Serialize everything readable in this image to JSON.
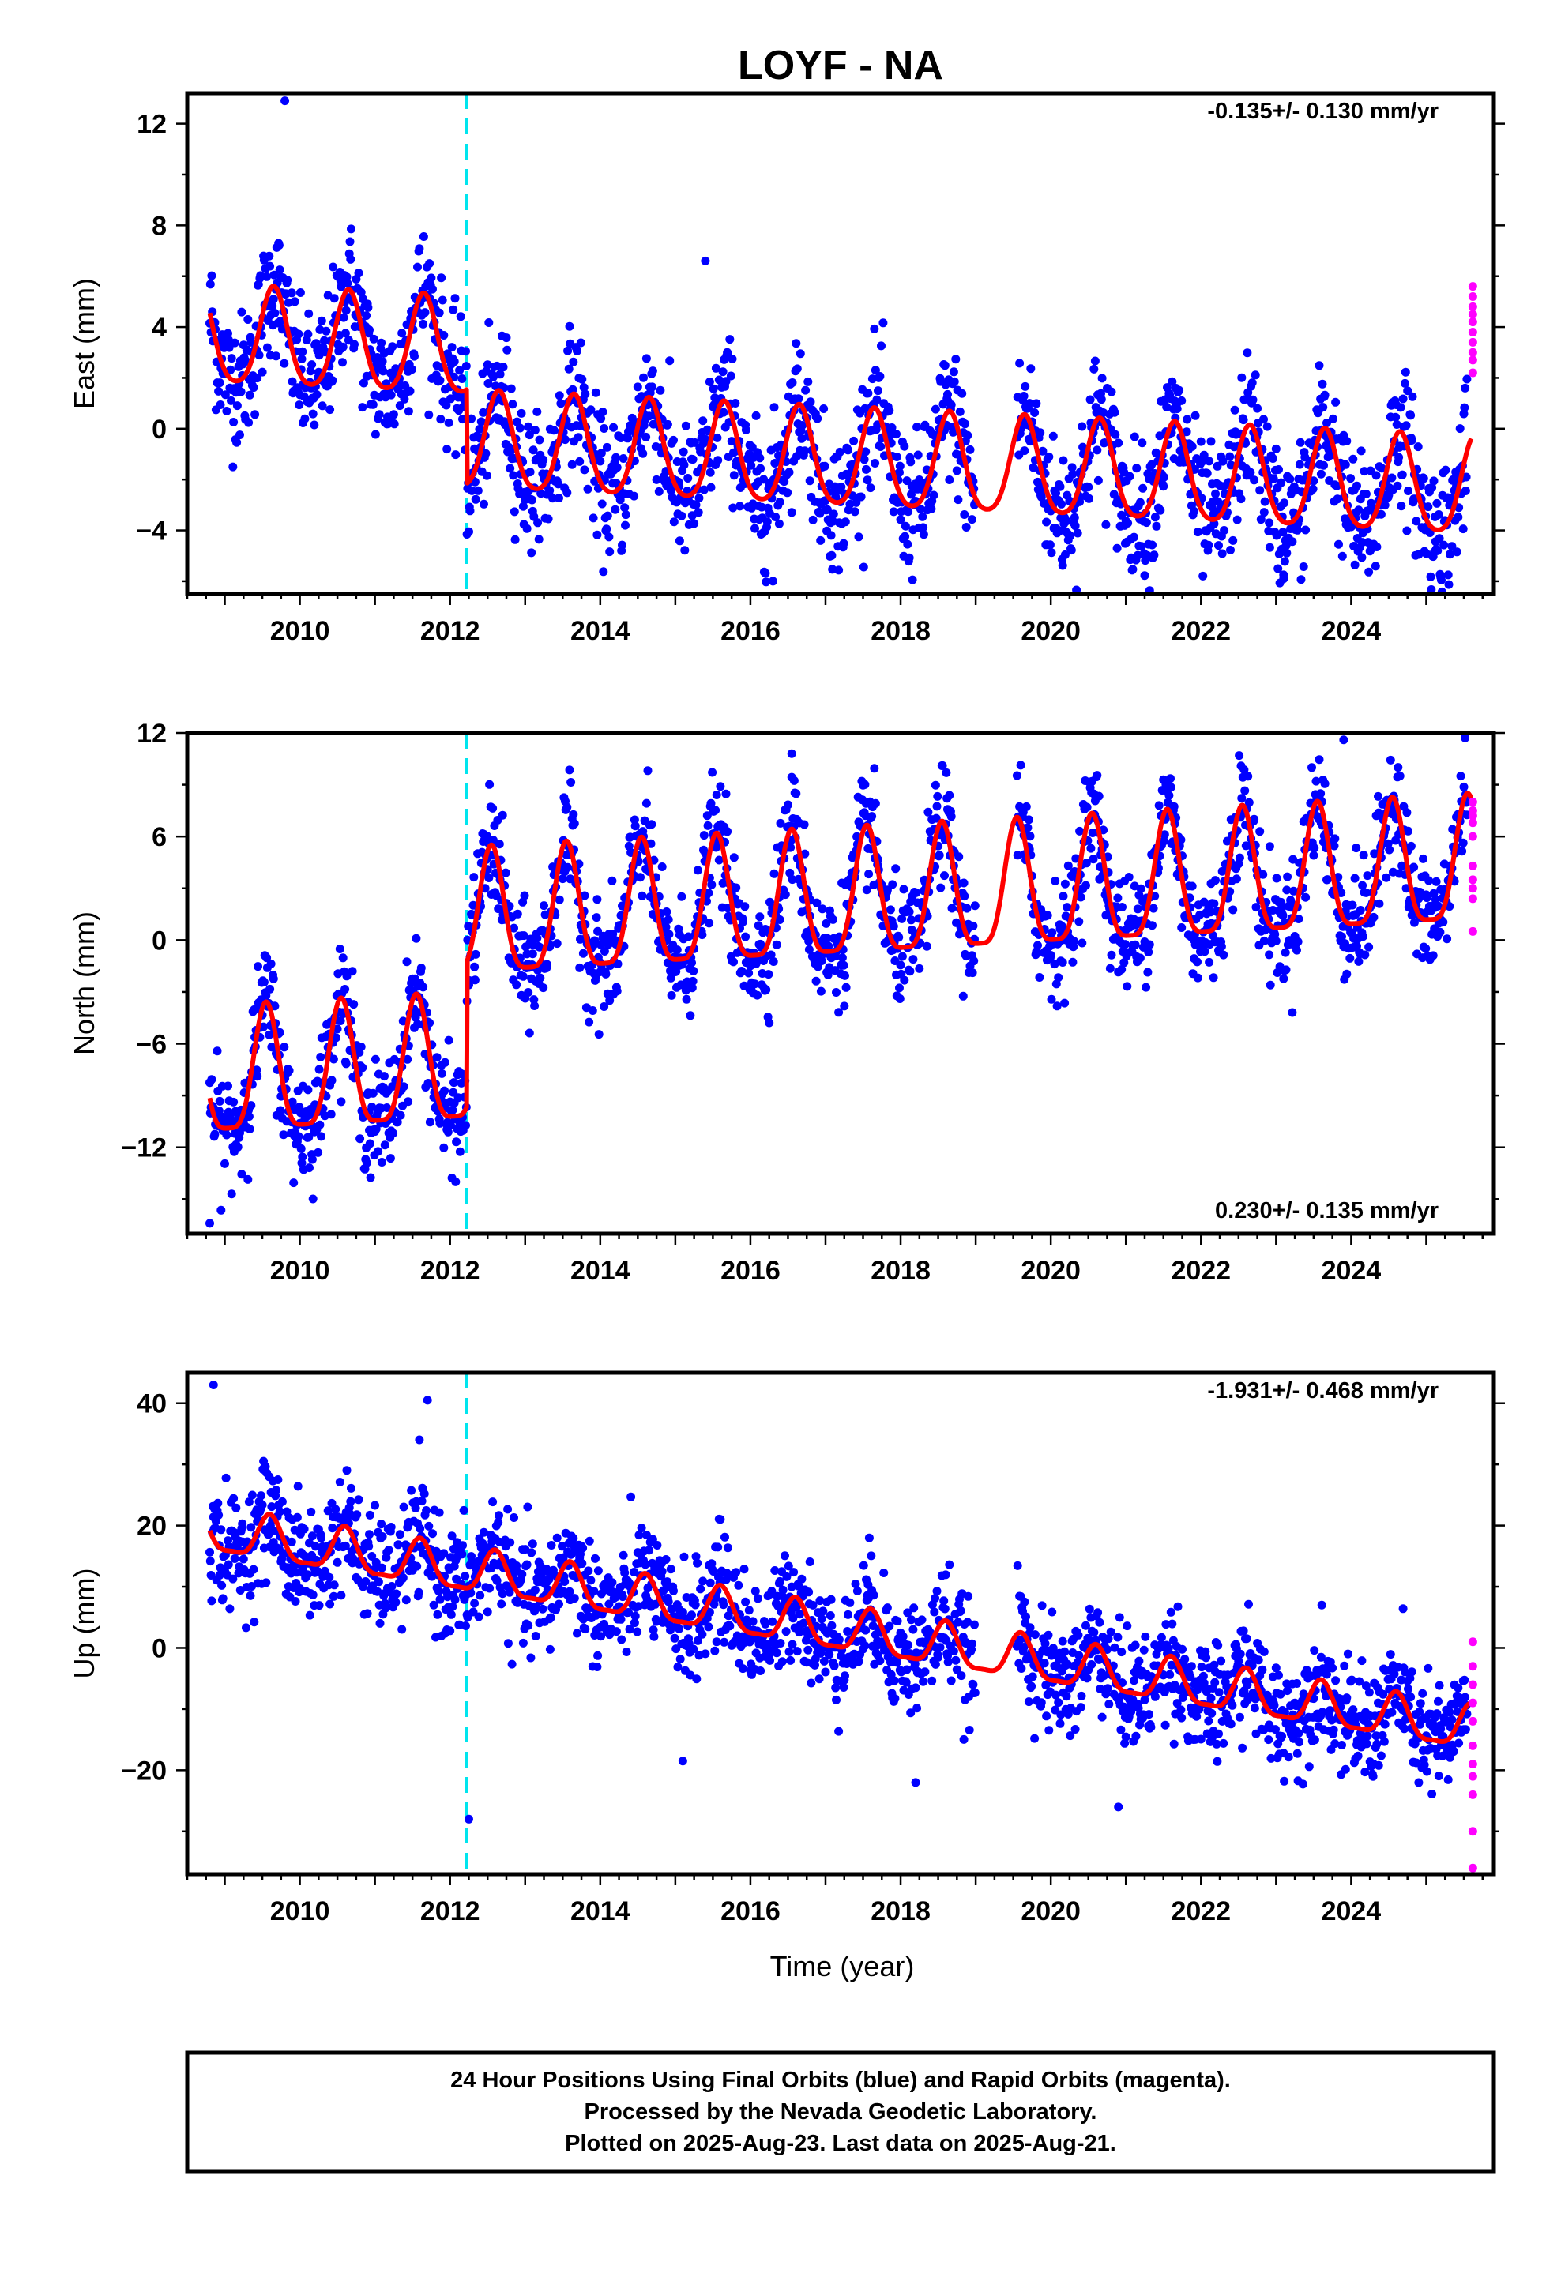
{
  "title": "LOYF - NA",
  "xlabel": "Time (year)",
  "colors": {
    "final": "#0000ff",
    "rapid": "#ff00ff",
    "model": "#ff0000",
    "event": "#00e5ee"
  },
  "footer": [
    "24 Hour Positions Using Final Orbits (blue) and Rapid Orbits (magenta).",
    "Processed by the Nevada Geodetic Laboratory.",
    "Plotted on 2025-Aug-23. Last data on 2025-Aug-21."
  ],
  "chart_data": [
    {
      "type": "scatter",
      "ylabel": "East (mm)",
      "rate_text": "-0.135+/- 0.130 mm/yr",
      "xlim": [
        2008.5,
        2025.9
      ],
      "ylim": [
        -6.5,
        13.2
      ],
      "yticks": [
        -4,
        0,
        4,
        8,
        12
      ],
      "xticks": [
        2010,
        2012,
        2014,
        2016,
        2018,
        2020,
        2022,
        2024
      ],
      "event_x": 2012.22,
      "data_gap": [
        2019.0,
        2019.55
      ],
      "model": {
        "pre": 3.5,
        "post": -0.2,
        "rate": -0.135,
        "annual_amp": 1.9,
        "annual_phase": 2009.65,
        "semi_amp": 0.3
      },
      "scatter_sigma": 1.3,
      "rapid_points": [
        5.6,
        5.2,
        4.8,
        4.5,
        4.2,
        3.8,
        3.4,
        3.0,
        2.7,
        2.2
      ],
      "outliers": [
        [
          2009.8,
          12.9
        ],
        [
          2015.4,
          6.6
        ],
        [
          2016.3,
          -6.0
        ],
        [
          2023.1,
          -5.9
        ]
      ]
    },
    {
      "type": "scatter",
      "ylabel": "North (mm)",
      "rate_text": "0.230+/- 0.135 mm/yr",
      "xlim": [
        2008.5,
        2025.9
      ],
      "ylim": [
        -17,
        12
      ],
      "yticks": [
        -12,
        -6,
        0,
        6,
        12
      ],
      "xticks": [
        2010,
        2012,
        2014,
        2016,
        2018,
        2020,
        2022,
        2024
      ],
      "event_x": 2012.22,
      "data_gap": [
        2019.0,
        2019.55
      ],
      "model": {
        "pre": -8.2,
        "post": 0.2,
        "rate": 0.23,
        "annual_amp": 3.6,
        "annual_phase": 2009.55,
        "semi_amp": 0.9
      },
      "scatter_sigma": 1.6,
      "rapid_points": [
        8.0,
        7.5,
        7.2,
        6.8,
        6.0,
        4.3,
        3.5,
        3.0,
        2.4,
        0.5
      ],
      "outliers": [
        [
          2016.55,
          10.8
        ],
        [
          2023.9,
          11.6
        ],
        [
          2008.8,
          -16.4
        ]
      ]
    },
    {
      "type": "scatter",
      "ylabel": "Up (mm)",
      "rate_text": "-1.931+/- 0.468 mm/yr",
      "xlim": [
        2008.5,
        2025.9
      ],
      "ylim": [
        -37,
        45
      ],
      "yticks": [
        -20,
        0,
        20,
        40
      ],
      "xticks": [
        2010,
        2012,
        2014,
        2016,
        2018,
        2020,
        2022,
        2024
      ],
      "event_x": 2012.22,
      "data_gap": [
        2019.0,
        2019.55
      ],
      "model": {
        "pre": 18.5,
        "post": 18.5,
        "rate": -1.931,
        "annual_amp": 3.5,
        "annual_phase": 2009.6,
        "semi_amp": 1.0
      },
      "scatter_sigma": 4.5,
      "rapid_points": [
        1.0,
        -3.0,
        -6.0,
        -9.0,
        -12.0,
        -16.0,
        -19.0,
        -21.0,
        -24.0,
        -30.0,
        -36.0
      ],
      "outliers": [
        [
          2008.85,
          43.0
        ],
        [
          2011.7,
          40.5
        ],
        [
          2012.25,
          -28.0
        ],
        [
          2015.1,
          -18.5
        ],
        [
          2018.2,
          -22.0
        ],
        [
          2020.9,
          -26.0
        ]
      ]
    }
  ]
}
